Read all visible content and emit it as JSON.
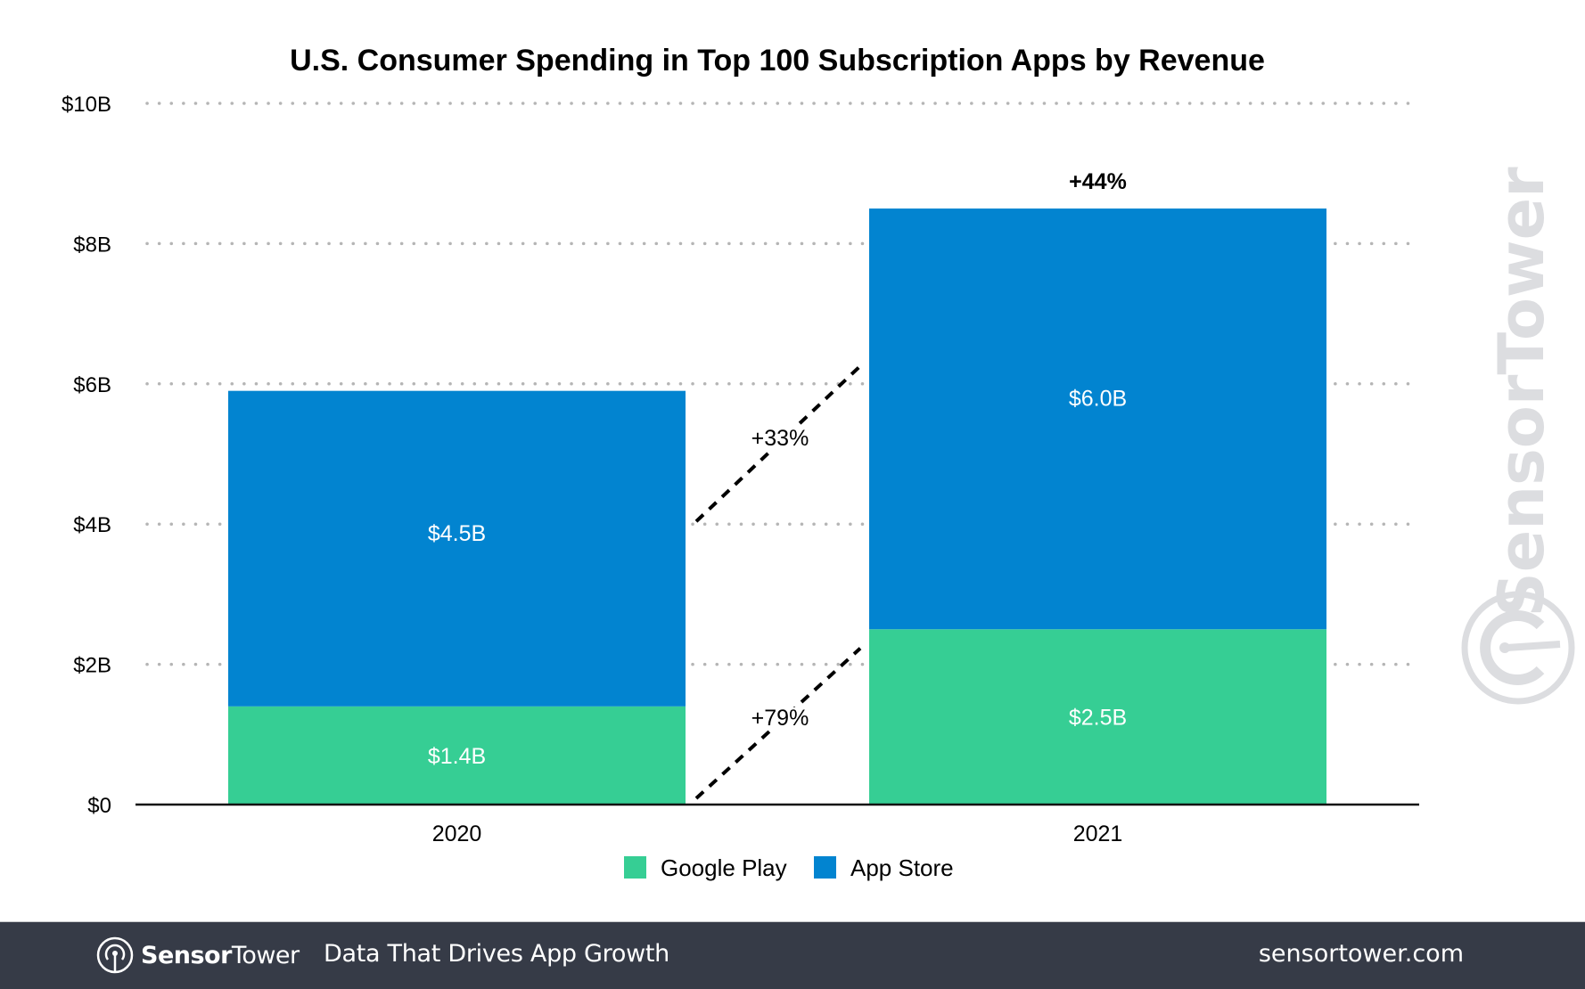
{
  "chart_data": {
    "type": "bar",
    "stacked": true,
    "title": "U.S. Consumer Spending in Top 100 Subscription Apps by Revenue",
    "xlabel": "",
    "ylabel": "",
    "categories": [
      "2020",
      "2021"
    ],
    "series": [
      {
        "name": "Google Play",
        "color": "#36ce94",
        "values": [
          1.4,
          2.5
        ],
        "labels": [
          "$1.4B",
          "$2.5B"
        ]
      },
      {
        "name": "App Store",
        "color": "#0284d0",
        "values": [
          4.5,
          6.0
        ],
        "labels": [
          "$4.5B",
          "$6.0B"
        ]
      }
    ],
    "totals": [
      5.9,
      8.5
    ],
    "ylim": [
      0,
      10
    ],
    "yticks": [
      0,
      2,
      4,
      6,
      8,
      10
    ],
    "ytick_labels": [
      "$0",
      "$2B",
      "$4B",
      "$6B",
      "$8B",
      "$10B"
    ],
    "grid": "horizontal-dotted",
    "legend": {
      "position": "bottom",
      "entries": [
        "Google Play",
        "App Store"
      ]
    },
    "annotations": [
      {
        "text": "+44%",
        "target": "2021 total",
        "style": "bold"
      },
      {
        "text": "+33%",
        "target": "App Store growth 2020 to 2021",
        "style": "dashed-connector"
      },
      {
        "text": "+79%",
        "target": "Google Play growth 2020 to 2021",
        "style": "dashed-connector"
      }
    ]
  },
  "watermark": {
    "text": "SensorTower"
  },
  "footer": {
    "brand_bold": "Sensor",
    "brand_light": "Tower",
    "tagline": "Data That Drives App Growth",
    "website": "sensortower.com"
  },
  "colors": {
    "google_play": "#36ce94",
    "app_store": "#0284d0",
    "footer_bg": "#363b47",
    "gridline": "#b5b5b5",
    "watermark": "#dcdde0"
  }
}
